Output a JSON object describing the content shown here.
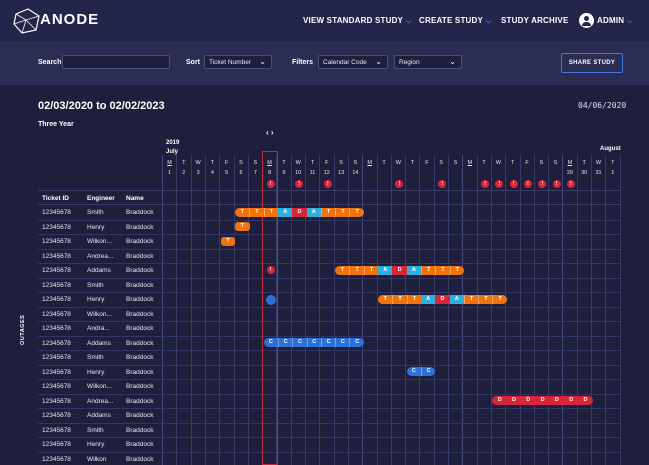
{
  "app": {
    "brand": "ANODE"
  },
  "nav": {
    "view_standard_study": "VIEW STANDARD STUDY",
    "create_study": "CREATE STUDY",
    "study_archive": "STUDY ARCHIVE",
    "admin": "ADMIN"
  },
  "filters": {
    "search_label": "Search",
    "search_value": "",
    "sort_label": "Sort",
    "sort_value": "Ticket Number",
    "filters_label": "Filters",
    "calendar_code": "Calendar Code",
    "region": "Region",
    "share_button": "SHARE STUDY"
  },
  "study": {
    "date_range": "02/03/2020 to 02/02/2023",
    "today": "04/06/2020",
    "subtitle": "Three Year",
    "nav_arrows": "‹ ›",
    "year": "2019",
    "month_july": "July",
    "month_august": "August"
  },
  "calendar": {
    "weekdays": [
      "M",
      "T",
      "W",
      "T",
      "F",
      "S",
      "S",
      "M",
      "T",
      "W",
      "T",
      "F",
      "S",
      "S",
      "M",
      "T",
      "W",
      "T",
      "F",
      "S",
      "S",
      "M",
      "T",
      "W",
      "T",
      "F",
      "S",
      "S",
      "M",
      "T",
      "W",
      "T"
    ],
    "dates": [
      "1",
      "2",
      "3",
      "4",
      "5",
      "6",
      "7",
      "8",
      "9",
      "10",
      "11",
      "12",
      "13",
      "14",
      "",
      "",
      "",
      "",
      "",
      "",
      "",
      "",
      "",
      "",
      "",
      "",
      "",
      "",
      "29",
      "30",
      "31",
      "1"
    ]
  },
  "table": {
    "headers": {
      "ticket": "Ticket ID",
      "engineer": "Engineer",
      "name": "Name"
    },
    "side_label": "OUTAGES",
    "rows": [
      {
        "ticket": "12345678",
        "engineer": "Smith",
        "name": "Braddock"
      },
      {
        "ticket": "12345678",
        "engineer": "Henry",
        "name": "Braddock"
      },
      {
        "ticket": "12345678",
        "engineer": "Wilkon...",
        "name": "Braddock"
      },
      {
        "ticket": "12345678",
        "engineer": "Andrea...",
        "name": "Braddock"
      },
      {
        "ticket": "12345678",
        "engineer": "Addams",
        "name": "Braddock"
      },
      {
        "ticket": "12345678",
        "engineer": "Smith",
        "name": "Braddock"
      },
      {
        "ticket": "12345678",
        "engineer": "Henry",
        "name": "Braddock"
      },
      {
        "ticket": "12345678",
        "engineer": "Wilkon...",
        "name": "Braddock"
      },
      {
        "ticket": "12345678",
        "engineer": "Andra...",
        "name": "Braddock"
      },
      {
        "ticket": "12345678",
        "engineer": "Addams",
        "name": "Braddock"
      },
      {
        "ticket": "12345678",
        "engineer": "Smith",
        "name": "Braddock"
      },
      {
        "ticket": "12345678",
        "engineer": "Henry",
        "name": "Braddock"
      },
      {
        "ticket": "12345678",
        "engineer": "Wilkon...",
        "name": "Braddock"
      },
      {
        "ticket": "12345678",
        "engineer": "Andrea...",
        "name": "Braddock"
      },
      {
        "ticket": "12345678",
        "engineer": "Addams",
        "name": "Braddock"
      },
      {
        "ticket": "12345678",
        "engineer": "Smith",
        "name": "Braddock"
      },
      {
        "ticket": "12345678",
        "engineer": "Henry",
        "name": "Braddock"
      },
      {
        "ticket": "12345678",
        "engineer": "Wilkon",
        "name": "Braddock"
      }
    ]
  },
  "alert_glyph": "!",
  "alert_days": [
    7,
    9,
    11,
    16,
    19,
    22,
    23,
    24,
    25,
    26,
    27,
    28
  ],
  "timeline": [
    {
      "row": 0,
      "segments": [
        {
          "day": 5,
          "t": "T",
          "c": "o"
        },
        {
          "day": 6,
          "t": "T",
          "c": "o"
        },
        {
          "day": 7,
          "t": "T",
          "c": "o"
        },
        {
          "day": 8,
          "t": "A",
          "c": "b"
        },
        {
          "day": 9,
          "t": "D",
          "c": "r"
        },
        {
          "day": 10,
          "t": "A",
          "c": "b"
        },
        {
          "day": 11,
          "t": "T",
          "c": "o"
        },
        {
          "day": 12,
          "t": "T",
          "c": "o"
        },
        {
          "day": 13,
          "t": "T",
          "c": "o"
        }
      ]
    },
    {
      "row": 1,
      "segments": [
        {
          "day": 5,
          "t": "T",
          "c": "o"
        }
      ]
    },
    {
      "row": 2,
      "segments": [
        {
          "day": 4,
          "t": "T",
          "c": "o"
        }
      ]
    },
    {
      "row": 4,
      "segments": [
        {
          "day": 7,
          "t": "!",
          "c": "alert"
        },
        {
          "day": 12,
          "t": "T",
          "c": "o"
        },
        {
          "day": 13,
          "t": "T",
          "c": "o"
        },
        {
          "day": 14,
          "t": "T",
          "c": "o"
        },
        {
          "day": 15,
          "t": "A",
          "c": "b"
        },
        {
          "day": 16,
          "t": "D",
          "c": "r"
        },
        {
          "day": 17,
          "t": "A",
          "c": "b"
        },
        {
          "day": 18,
          "t": "T",
          "c": "o"
        },
        {
          "day": 19,
          "t": "T",
          "c": "o"
        },
        {
          "day": 20,
          "t": "T",
          "c": "o"
        }
      ]
    },
    {
      "row": 6,
      "segments": [
        {
          "day": 7,
          "t": "",
          "c": "dot"
        },
        {
          "day": 15,
          "t": "T",
          "c": "o"
        },
        {
          "day": 16,
          "t": "T",
          "c": "o"
        },
        {
          "day": 17,
          "t": "T",
          "c": "o"
        },
        {
          "day": 18,
          "t": "A",
          "c": "b"
        },
        {
          "day": 19,
          "t": "D",
          "c": "r"
        },
        {
          "day": 20,
          "t": "A",
          "c": "b"
        },
        {
          "day": 21,
          "t": "T",
          "c": "o"
        },
        {
          "day": 22,
          "t": "T",
          "c": "o"
        },
        {
          "day": 23,
          "t": "T",
          "c": "o"
        }
      ]
    },
    {
      "row": 9,
      "segments": [
        {
          "day": 7,
          "t": "C",
          "c": "c"
        },
        {
          "day": 8,
          "t": "C",
          "c": "c"
        },
        {
          "day": 9,
          "t": "C",
          "c": "c"
        },
        {
          "day": 10,
          "t": "C",
          "c": "c"
        },
        {
          "day": 11,
          "t": "C",
          "c": "c"
        },
        {
          "day": 12,
          "t": "C",
          "c": "c"
        },
        {
          "day": 13,
          "t": "C",
          "c": "c"
        }
      ]
    },
    {
      "row": 11,
      "segments": [
        {
          "day": 17,
          "t": "C",
          "c": "c"
        },
        {
          "day": 18,
          "t": "C",
          "c": "c"
        }
      ]
    },
    {
      "row": 13,
      "segments": [
        {
          "day": 23,
          "t": "D",
          "c": "r"
        },
        {
          "day": 24,
          "t": "D",
          "c": "r"
        },
        {
          "day": 25,
          "t": "D",
          "c": "r"
        },
        {
          "day": 26,
          "t": "D",
          "c": "r"
        },
        {
          "day": 27,
          "t": "D",
          "c": "r"
        },
        {
          "day": 28,
          "t": "D",
          "c": "r"
        },
        {
          "day": 29,
          "t": "D",
          "c": "r"
        }
      ]
    }
  ],
  "colors": {
    "bg": "#1e1f3c",
    "topbar": "#23254a",
    "accent": "#3d7be0",
    "alert": "#d8253a",
    "ticket": "#f0730e",
    "assign": "#2fb0dc",
    "closed": "#2f6fd8"
  }
}
